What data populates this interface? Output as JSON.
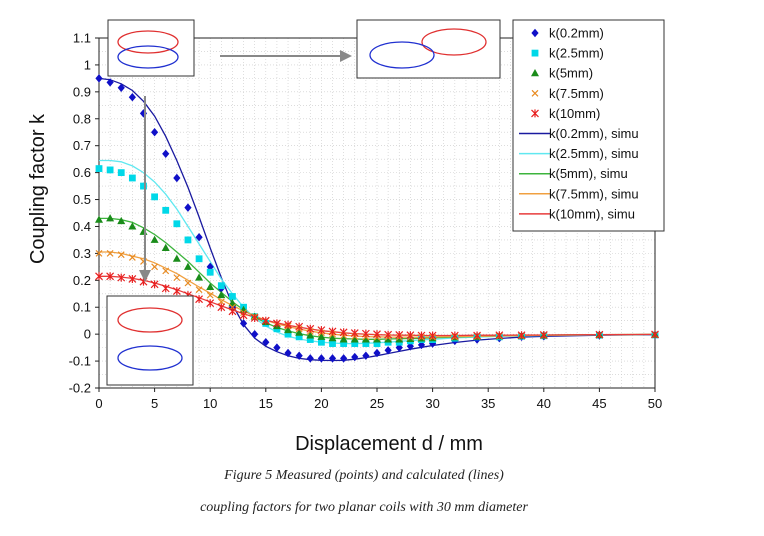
{
  "chart_data": {
    "type": "scatter",
    "title": "",
    "xlabel": "Displacement d / mm",
    "ylabel": "Coupling factor k",
    "xlim": [
      0,
      50
    ],
    "ylim": [
      -0.2,
      1.1
    ],
    "xticks": [
      0,
      5,
      10,
      15,
      20,
      25,
      30,
      35,
      40,
      45,
      50
    ],
    "yticks": [
      -0.2,
      -0.1,
      0,
      0.1,
      0.2,
      0.3,
      0.4,
      0.5,
      0.6,
      0.7,
      0.8,
      0.9,
      1,
      1.1
    ],
    "grid": true,
    "legend_position": "top-right",
    "x": [
      0,
      1,
      2,
      3,
      4,
      5,
      6,
      7,
      8,
      9,
      10,
      11,
      12,
      13,
      14,
      15,
      16,
      17,
      18,
      19,
      20,
      21,
      22,
      23,
      24,
      25,
      26,
      27,
      28,
      29,
      30,
      32,
      34,
      36,
      38,
      40,
      45,
      50
    ],
    "series": [
      {
        "name": "k(0.2mm)",
        "color": "#1010c8",
        "marker": "diamond",
        "values": [
          0.95,
          0.935,
          0.915,
          0.88,
          0.82,
          0.75,
          0.67,
          0.58,
          0.47,
          0.36,
          0.25,
          0.17,
          0.1,
          0.04,
          0.0,
          -0.03,
          -0.05,
          -0.07,
          -0.08,
          -0.09,
          -0.09,
          -0.09,
          -0.09,
          -0.085,
          -0.08,
          -0.07,
          -0.06,
          -0.05,
          -0.045,
          -0.04,
          -0.035,
          -0.025,
          -0.02,
          -0.015,
          -0.01,
          -0.008,
          -0.005,
          -0.003
        ]
      },
      {
        "name": "k(2.5mm)",
        "color": "#00d8e8",
        "marker": "square",
        "values": [
          0.615,
          0.61,
          0.6,
          0.58,
          0.55,
          0.51,
          0.46,
          0.41,
          0.35,
          0.28,
          0.23,
          0.18,
          0.14,
          0.1,
          0.065,
          0.04,
          0.02,
          0.0,
          -0.01,
          -0.02,
          -0.03,
          -0.035,
          -0.035,
          -0.035,
          -0.035,
          -0.035,
          -0.03,
          -0.03,
          -0.025,
          -0.02,
          -0.02,
          -0.015,
          -0.01,
          -0.01,
          -0.008,
          -0.006,
          -0.004,
          -0.003
        ]
      },
      {
        "name": "k(5mm)",
        "color": "#1a8c1a",
        "marker": "triangle",
        "values": [
          0.425,
          0.43,
          0.42,
          0.4,
          0.38,
          0.35,
          0.32,
          0.28,
          0.25,
          0.21,
          0.175,
          0.145,
          0.115,
          0.09,
          0.065,
          0.045,
          0.03,
          0.015,
          0.005,
          -0.005,
          -0.01,
          -0.015,
          -0.02,
          -0.02,
          -0.02,
          -0.02,
          -0.02,
          -0.02,
          -0.018,
          -0.016,
          -0.015,
          -0.012,
          -0.01,
          -0.008,
          -0.006,
          -0.005,
          -0.003,
          -0.002
        ]
      },
      {
        "name": "k(7.5mm)",
        "color": "#e88a20",
        "marker": "x",
        "values": [
          0.3,
          0.3,
          0.295,
          0.285,
          0.27,
          0.25,
          0.235,
          0.21,
          0.19,
          0.165,
          0.145,
          0.12,
          0.1,
          0.08,
          0.065,
          0.05,
          0.04,
          0.03,
          0.02,
          0.01,
          0.005,
          0.0,
          -0.005,
          -0.008,
          -0.01,
          -0.012,
          -0.012,
          -0.012,
          -0.012,
          -0.012,
          -0.011,
          -0.01,
          -0.008,
          -0.007,
          -0.006,
          -0.005,
          -0.003,
          -0.002
        ]
      },
      {
        "name": "k(10mm)",
        "color": "#e82020",
        "marker": "asterisk",
        "values": [
          0.215,
          0.215,
          0.21,
          0.205,
          0.195,
          0.185,
          0.17,
          0.16,
          0.145,
          0.13,
          0.115,
          0.1,
          0.085,
          0.07,
          0.06,
          0.05,
          0.04,
          0.035,
          0.028,
          0.02,
          0.015,
          0.01,
          0.007,
          0.004,
          0.002,
          0.0,
          -0.002,
          -0.003,
          -0.004,
          -0.005,
          -0.005,
          -0.005,
          -0.005,
          -0.004,
          -0.004,
          -0.003,
          -0.002,
          -0.001
        ]
      },
      {
        "name": "k(0.2mm), simu",
        "color": "#1a1aa0",
        "marker": "line",
        "values": [
          0.95,
          0.945,
          0.93,
          0.905,
          0.865,
          0.81,
          0.735,
          0.645,
          0.545,
          0.435,
          0.32,
          0.21,
          0.11,
          0.035,
          -0.015,
          -0.045,
          -0.065,
          -0.08,
          -0.09,
          -0.095,
          -0.097,
          -0.098,
          -0.097,
          -0.093,
          -0.087,
          -0.08,
          -0.072,
          -0.064,
          -0.056,
          -0.049,
          -0.042,
          -0.031,
          -0.022,
          -0.016,
          -0.011,
          -0.008,
          -0.004,
          -0.002
        ]
      },
      {
        "name": "k(2.5mm), simu",
        "color": "#60e8f0",
        "marker": "line",
        "values": [
          0.645,
          0.645,
          0.64,
          0.625,
          0.6,
          0.565,
          0.52,
          0.465,
          0.4,
          0.335,
          0.27,
          0.205,
          0.15,
          0.1,
          0.06,
          0.03,
          0.008,
          -0.008,
          -0.018,
          -0.025,
          -0.03,
          -0.033,
          -0.035,
          -0.035,
          -0.034,
          -0.032,
          -0.03,
          -0.027,
          -0.024,
          -0.021,
          -0.019,
          -0.014,
          -0.011,
          -0.008,
          -0.006,
          -0.005,
          -0.003,
          -0.001
        ]
      },
      {
        "name": "k(5mm), simu",
        "color": "#3cb43c",
        "marker": "line",
        "values": [
          0.43,
          0.43,
          0.425,
          0.415,
          0.395,
          0.37,
          0.34,
          0.305,
          0.27,
          0.23,
          0.19,
          0.155,
          0.12,
          0.09,
          0.063,
          0.042,
          0.025,
          0.012,
          0.002,
          -0.006,
          -0.011,
          -0.015,
          -0.017,
          -0.018,
          -0.019,
          -0.019,
          -0.018,
          -0.017,
          -0.016,
          -0.015,
          -0.013,
          -0.011,
          -0.008,
          -0.007,
          -0.005,
          -0.004,
          -0.002,
          -0.001
        ]
      },
      {
        "name": "k(7.5mm), simu",
        "color": "#f0a040",
        "marker": "line",
        "values": [
          0.305,
          0.305,
          0.3,
          0.29,
          0.28,
          0.265,
          0.245,
          0.225,
          0.2,
          0.175,
          0.152,
          0.128,
          0.106,
          0.086,
          0.068,
          0.052,
          0.039,
          0.028,
          0.019,
          0.011,
          0.005,
          0.0,
          -0.004,
          -0.007,
          -0.009,
          -0.01,
          -0.011,
          -0.011,
          -0.011,
          -0.011,
          -0.01,
          -0.009,
          -0.008,
          -0.006,
          -0.005,
          -0.004,
          -0.002,
          -0.001
        ]
      },
      {
        "name": "k(10mm), simu",
        "color": "#e83c3c",
        "marker": "line",
        "values": [
          0.215,
          0.215,
          0.212,
          0.207,
          0.2,
          0.19,
          0.178,
          0.165,
          0.15,
          0.135,
          0.12,
          0.105,
          0.09,
          0.076,
          0.063,
          0.052,
          0.042,
          0.033,
          0.026,
          0.019,
          0.013,
          0.009,
          0.005,
          0.002,
          0.0,
          -0.002,
          -0.003,
          -0.004,
          -0.004,
          -0.005,
          -0.005,
          -0.005,
          -0.004,
          -0.004,
          -0.003,
          -0.003,
          -0.002,
          -0.001
        ]
      }
    ]
  },
  "caption": {
    "line1": "Figure 5 Measured (points) and calculated (lines)",
    "line2": "coupling factors for two planar coils with 30 mm diameter"
  }
}
